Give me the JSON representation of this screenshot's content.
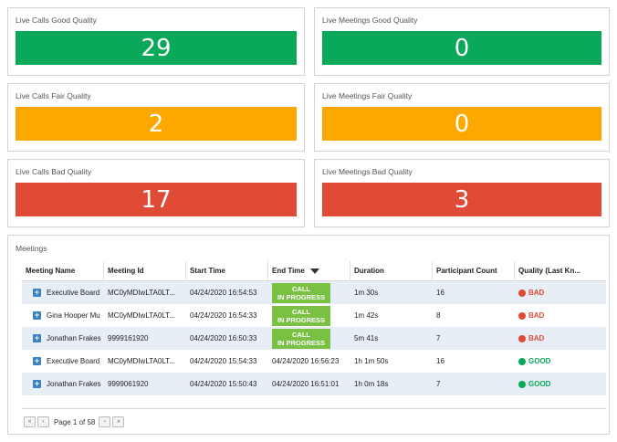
{
  "tiles": {
    "calls_good": {
      "title": "Live Calls Good Quality",
      "value": "29"
    },
    "meetings_good": {
      "title": "Live Meetings Good Quality",
      "value": "0"
    },
    "calls_fair": {
      "title": "Live Calls Fair Quality",
      "value": "2"
    },
    "meetings_fair": {
      "title": "Live Meetings Fair Quality",
      "value": "0"
    },
    "calls_bad": {
      "title": "Live Calls Bad Quality",
      "value": "17"
    },
    "meetings_bad": {
      "title": "Live Meetings Bad Quality",
      "value": "3"
    }
  },
  "colors": {
    "good": "#0aa859",
    "fair": "#fda800",
    "bad": "#e04b37",
    "in_progress": "#7ac143"
  },
  "meetings": {
    "title": "Meetings",
    "columns": [
      "Meeting Name",
      "Meeting Id",
      "Start Time",
      "End Time",
      "Duration",
      "Participant Count",
      "Quality (Last Kn..."
    ],
    "sorted_column_icon": "sort-descending-icon",
    "rows": [
      {
        "name": "Executive Board",
        "id": "MC0yMDIwLTA0LT...",
        "start": "04/24/2020 16:54:53",
        "end_label": [
          "CALL",
          "IN PROGRESS"
        ],
        "end": "",
        "duration": "1m 30s",
        "participants": "16",
        "quality": "BAD"
      },
      {
        "name": "Gina Hooper Mu",
        "id": "MC0yMDIwLTA0LT...",
        "start": "04/24/2020 16:54:33",
        "end_label": [
          "CALL",
          "IN PROGRESS"
        ],
        "end": "",
        "duration": "1m 42s",
        "participants": "8",
        "quality": "BAD"
      },
      {
        "name": "Jonathan Frakes",
        "id": "9999161920",
        "start": "04/24/2020 16:50:33",
        "end_label": [
          "CALL",
          "IN PROGRESS"
        ],
        "end": "",
        "duration": "5m 41s",
        "participants": "7",
        "quality": "BAD"
      },
      {
        "name": "Executive Board",
        "id": "MC0yMDIwLTA0LT...",
        "start": "04/24/2020 15:54:33",
        "end_label": null,
        "end": "04/24/2020 16:56:23",
        "duration": "1h 1m 50s",
        "participants": "16",
        "quality": "GOOD"
      },
      {
        "name": "Jonathan Frakes",
        "id": "9999061920",
        "start": "04/24/2020 15:50:43",
        "end_label": null,
        "end": "04/24/2020 16:51:01",
        "duration": "1h 0m 18s",
        "participants": "7",
        "quality": "GOOD"
      }
    ],
    "pager": {
      "text": "Page 1 of 58",
      "first": "«",
      "prev": "‹",
      "next": "›",
      "last": "»"
    }
  }
}
